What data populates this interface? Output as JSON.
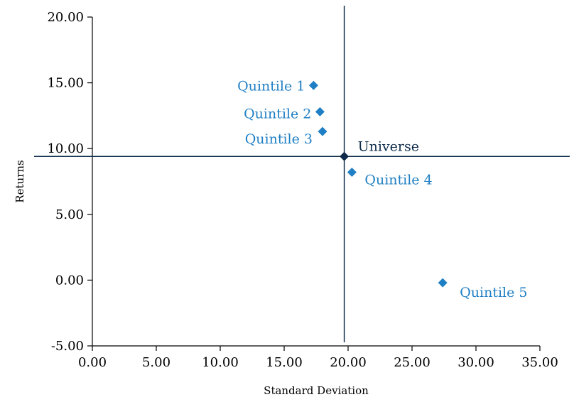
{
  "chart_data": {
    "type": "scatter",
    "title": "",
    "xlabel": "Standard Deviation",
    "ylabel": "Returns",
    "xlim": [
      0,
      35
    ],
    "ylim": [
      -5,
      20
    ],
    "x_ticks": [
      "0.00",
      "5.00",
      "10.00",
      "15.00",
      "20.00",
      "25.00",
      "30.00",
      "35.00"
    ],
    "y_ticks": [
      "-5.00",
      "0.00",
      "5.00",
      "10.00",
      "15.00",
      "20.00"
    ],
    "grid": false,
    "reference_lines": {
      "x": 19.7,
      "y": 9.4
    },
    "points": [
      {
        "label": "Quintile 1",
        "x": 17.3,
        "y": 14.8,
        "color": "#1f7fc4"
      },
      {
        "label": "Quintile 2",
        "x": 17.8,
        "y": 12.8,
        "color": "#1f7fc4"
      },
      {
        "label": "Quintile 3",
        "x": 18.0,
        "y": 11.3,
        "color": "#1f7fc4"
      },
      {
        "label": "Universe",
        "x": 19.7,
        "y": 9.4,
        "color": "#0d2a4a"
      },
      {
        "label": "Quintile 4",
        "x": 20.3,
        "y": 8.2,
        "color": "#1f7fc4"
      },
      {
        "label": "Quintile 5",
        "x": 27.4,
        "y": -0.2,
        "color": "#1f7fc4"
      }
    ]
  }
}
